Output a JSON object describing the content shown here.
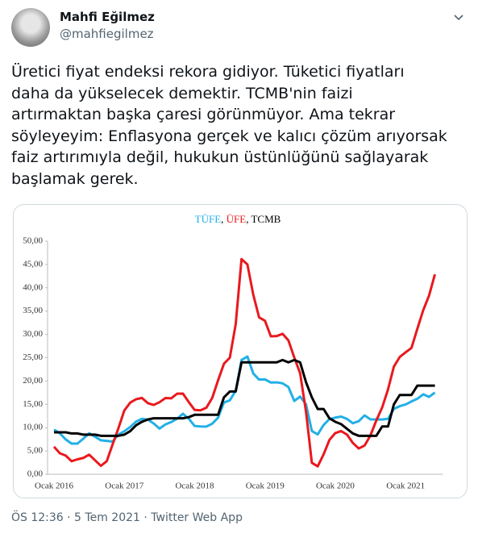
{
  "tweet": {
    "name": "Mahfi Eğilmez",
    "handle": "@mahfiegilmez",
    "text_lines": [
      "Üretici fiyat endeksi rekora gidiyor. Tüketici fiyatları",
      "daha da yükselecek demektir. TCMB'nin faizi",
      "artırmaktan başka çaresi görünmüyor. Ama tekrar",
      "söyleyeyim: Enflasyona gerçek ve kalıcı çözüm arıyorsak",
      "faiz artırımıyla değil, hukukun üstünlüğünü sağlayarak",
      "başlamak gerek."
    ],
    "footer": "ÖS 12:36 · 5 Tem 2021 · Twitter Web App"
  },
  "chart_data": {
    "type": "line",
    "title": "TÜFE, ÜFE, TCMB",
    "categories": [
      "Ocak 2016",
      null,
      null,
      null,
      null,
      null,
      null,
      null,
      null,
      null,
      null,
      null,
      "Ocak 2017",
      null,
      null,
      null,
      null,
      null,
      null,
      null,
      null,
      null,
      null,
      null,
      "Ocak 2018",
      null,
      null,
      null,
      null,
      null,
      null,
      null,
      null,
      null,
      null,
      null,
      "Ocak 2019",
      null,
      null,
      null,
      null,
      null,
      null,
      null,
      null,
      null,
      null,
      null,
      "Ocak 2020",
      null,
      null,
      null,
      null,
      null,
      null,
      null,
      null,
      null,
      null,
      null,
      "Ocak 2021",
      null,
      null,
      null,
      null,
      null
    ],
    "series": [
      {
        "name": "TÜFE",
        "color": "#22b0e6",
        "values": [
          9.58,
          8.78,
          7.46,
          6.57,
          6.58,
          7.64,
          8.79,
          8.05,
          7.28,
          7.16,
          7.0,
          8.53,
          9.22,
          10.13,
          11.29,
          11.87,
          11.72,
          10.9,
          9.79,
          10.68,
          11.2,
          11.9,
          12.98,
          11.92,
          10.35,
          10.26,
          10.23,
          10.85,
          12.15,
          15.39,
          15.85,
          17.9,
          24.52,
          25.24,
          21.62,
          20.3,
          20.35,
          19.67,
          19.71,
          19.5,
          18.71,
          15.72,
          16.65,
          15.01,
          9.26,
          8.55,
          10.56,
          11.84,
          12.15,
          12.37,
          11.86,
          10.94,
          11.39,
          12.62,
          11.76,
          11.77,
          11.75,
          11.89,
          14.03,
          14.6,
          14.97,
          15.61,
          16.19,
          17.14,
          16.59,
          17.53
        ]
      },
      {
        "name": "ÜFE",
        "color": "#e8191e",
        "values": [
          5.9,
          4.5,
          4.0,
          2.8,
          3.2,
          3.5,
          4.2,
          3.0,
          1.8,
          2.8,
          6.4,
          9.9,
          13.69,
          15.36,
          16.09,
          16.37,
          15.26,
          14.87,
          15.45,
          16.34,
          16.28,
          17.28,
          17.3,
          15.47,
          13.8,
          13.71,
          14.28,
          16.37,
          20.16,
          23.71,
          25.0,
          32.13,
          46.15,
          45.01,
          38.54,
          33.64,
          32.93,
          29.59,
          29.64,
          30.12,
          28.71,
          25.04,
          21.66,
          13.45,
          2.45,
          1.7,
          4.26,
          7.36,
          8.84,
          9.26,
          8.5,
          6.71,
          5.53,
          6.17,
          8.33,
          11.53,
          14.33,
          18.2,
          23.11,
          25.15,
          26.16,
          27.09,
          31.2,
          35.17,
          38.33,
          42.89
        ]
      },
      {
        "name": "TCMB",
        "color": "#000000",
        "values": [
          9,
          9,
          9,
          8.75,
          8.75,
          8.5,
          8.5,
          8.5,
          8.25,
          8.25,
          8.25,
          8.25,
          8.5,
          9.25,
          10.5,
          11.25,
          11.75,
          12,
          12,
          12,
          12,
          12,
          12,
          12.25,
          12.75,
          12.75,
          12.75,
          12.75,
          12.75,
          16.5,
          17.75,
          17.75,
          24,
          24,
          24,
          24,
          24,
          24,
          24,
          24.5,
          24,
          24.5,
          24,
          19.75,
          16.5,
          14,
          14,
          12,
          11.25,
          10.75,
          9.75,
          8.75,
          8.25,
          8.25,
          8.25,
          8.25,
          10.25,
          10.25,
          15,
          17,
          17,
          17,
          19,
          19,
          19,
          19
        ]
      }
    ],
    "ylim": [
      0,
      50
    ],
    "yticks": [
      {
        "value": 0,
        "label": "0,00"
      },
      {
        "value": 5,
        "label": "5,00"
      },
      {
        "value": 10,
        "label": "10,00"
      },
      {
        "value": 15,
        "label": "15,00"
      },
      {
        "value": 20,
        "label": "20,00"
      },
      {
        "value": 25,
        "label": "25,00"
      },
      {
        "value": 30,
        "label": "30,00"
      },
      {
        "value": 35,
        "label": "35,00"
      },
      {
        "value": 40,
        "label": "40,00"
      },
      {
        "value": 45,
        "label": "45,00"
      },
      {
        "value": 50,
        "label": "50,00"
      }
    ],
    "grid": false
  }
}
